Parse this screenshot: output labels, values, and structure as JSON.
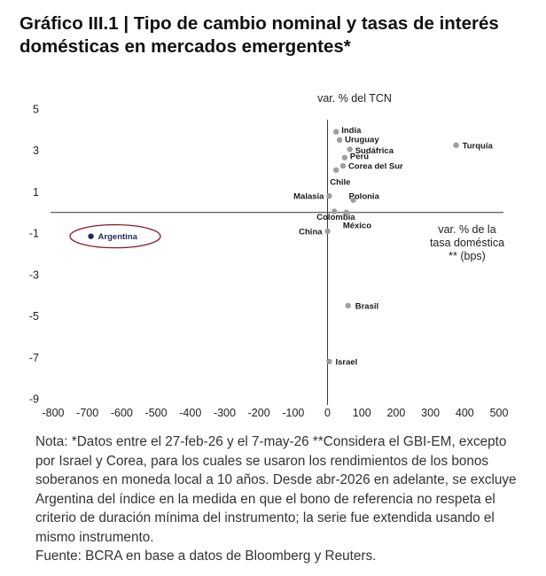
{
  "title": "Gráfico III.1 | Tipo de cambio nominal y tasas de interés domésticas en mercados emergentes*",
  "chart_data": {
    "type": "scatter",
    "ylabel": "var. % del TCN",
    "xlabel": [
      "var. % de la",
      "tasa doméstica",
      "** (bps)"
    ],
    "xlim": [
      -800,
      500
    ],
    "ylim": [
      -9,
      5
    ],
    "x_ticks": [
      "-800",
      "-700",
      "-600",
      "-500",
      "-400",
      "-300",
      "-200",
      "-100",
      "0",
      "100",
      "200",
      "300",
      "400",
      "500"
    ],
    "y_ticks": [
      "5",
      "3",
      "1",
      "-1",
      "-3",
      "-5",
      "-7",
      "-9"
    ],
    "grid": false,
    "colors": {
      "point": "#9e9e9e",
      "highlight": "#1f2a5c",
      "ellipse": "#8b1a2b",
      "axis": "#333333"
    },
    "points": [
      {
        "label": "India",
        "x": 25,
        "y": 3.9
      },
      {
        "label": "Uruguay",
        "x": 35,
        "y": 3.5
      },
      {
        "label": "Sudáfrica",
        "x": 65,
        "y": 3.05
      },
      {
        "label": "Perú",
        "x": 50,
        "y": 2.65
      },
      {
        "label": "Corea del Sur",
        "x": 45,
        "y": 2.25
      },
      {
        "label": "Chile",
        "x": 25,
        "y": 2.05
      },
      {
        "label": "Turquía",
        "x": 375,
        "y": 3.25
      },
      {
        "label": "Malasia",
        "x": 5,
        "y": 0.8
      },
      {
        "label": "Polonia",
        "x": 75,
        "y": 0.6
      },
      {
        "label": "Colombia",
        "x": 20,
        "y": 0.05
      },
      {
        "label": "México",
        "x": 55,
        "y": 0.0
      },
      {
        "label": "China",
        "x": 0,
        "y": -0.9
      },
      {
        "label": "Argentina",
        "x": -690,
        "y": -1.15,
        "highlight": true
      },
      {
        "label": "Brasil",
        "x": 60,
        "y": -4.5
      },
      {
        "label": "Israel",
        "x": 5,
        "y": -7.2
      }
    ]
  },
  "note": {
    "text": "Nota:  *Datos entre el 27-feb-26 y el 7-may-26 **Considera el GBI-EM, excepto por Israel y Corea, para los cuales se usaron los rendimientos de los bonos soberanos en moneda local a 10 años. Desde abr-2026 en adelante, se excluye Argentina del índice en la medida en que el bono de referencia no respeta el criterio de duración mínima del instrumento; la serie fue extendida usando el mismo instrumento.",
    "source": "Fuente: BCRA en base a datos de Bloomberg y Reuters."
  }
}
